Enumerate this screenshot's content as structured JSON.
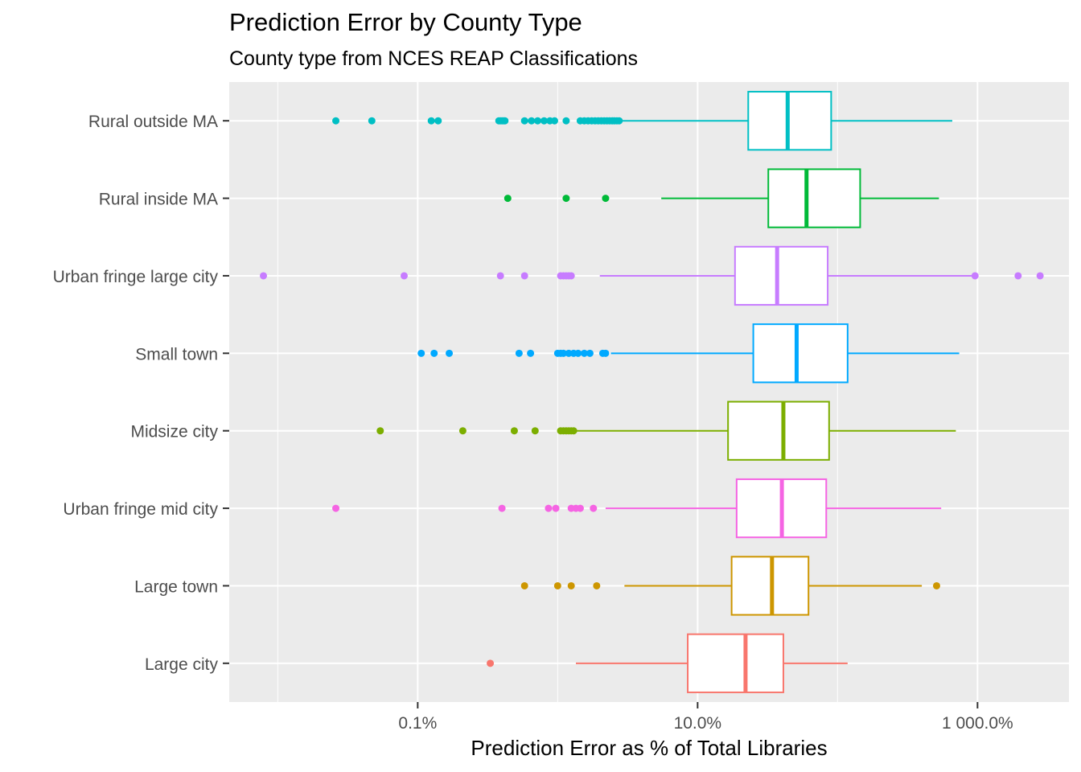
{
  "chart_data": {
    "type": "boxplot",
    "title": "Prediction Error by County Type",
    "subtitle": "County type from NCES REAP Classifications",
    "xlabel": "Prediction Error as % of Total Libraries",
    "ylabel": "",
    "x_scale": "log10",
    "xlim_percent": [
      0.0045,
      4500
    ],
    "x_ticks": [
      {
        "value": 0.1,
        "label": "0.1%"
      },
      {
        "value": 10,
        "label": "10.0%"
      },
      {
        "value": 1000,
        "label": "1 000.0%"
      }
    ],
    "grid": true,
    "legend": "none",
    "categories": [
      "Rural outside MA",
      "Rural inside MA",
      "Urban fringe large city",
      "Small town",
      "Midsize city",
      "Urban fringe mid city",
      "Large town",
      "Large city"
    ],
    "series": [
      {
        "category": "Rural outside MA",
        "color": "#00BFC4",
        "whisker_low": 2.8,
        "q1": 23,
        "median": 44,
        "q3": 90,
        "whisker_high": 660,
        "outliers": [
          0.026,
          0.047,
          0.125,
          0.14,
          0.38,
          0.39,
          0.4,
          0.41,
          0.42,
          0.58,
          0.65,
          0.72,
          0.8,
          0.88,
          0.95,
          1.15,
          1.45,
          1.55,
          1.65,
          1.75,
          1.85,
          1.95,
          2.05,
          2.15,
          2.25,
          2.35,
          2.45,
          2.55,
          2.65,
          2.75
        ]
      },
      {
        "category": "Rural inside MA",
        "color": "#00BA38",
        "whisker_low": 5.5,
        "q1": 32,
        "median": 60,
        "q3": 145,
        "whisker_high": 530,
        "outliers": [
          0.44,
          1.15,
          2.2
        ]
      },
      {
        "category": "Urban fringe large city",
        "color": "#C77CFF",
        "whisker_low": 2.0,
        "q1": 18.5,
        "median": 37,
        "q3": 85,
        "whisker_high": 960,
        "outliers": [
          0.0079,
          0.08,
          0.39,
          0.58,
          1.05,
          1.1,
          1.15,
          1.2,
          1.25,
          960,
          1950,
          2800
        ]
      },
      {
        "category": "Small town",
        "color": "#00A9FF",
        "whisker_low": 2.4,
        "q1": 25,
        "median": 51,
        "q3": 118,
        "whisker_high": 740,
        "outliers": [
          0.106,
          0.131,
          0.168,
          0.53,
          0.64,
          1.0,
          1.05,
          1.1,
          1.2,
          1.3,
          1.4,
          1.55,
          1.7,
          2.1,
          2.2
        ]
      },
      {
        "category": "Midsize city",
        "color": "#7CAE00",
        "whisker_low": 1.3,
        "q1": 16.5,
        "median": 41,
        "q3": 87,
        "whisker_high": 700,
        "outliers": [
          0.054,
          0.21,
          0.49,
          0.69,
          1.05,
          1.1,
          1.15,
          1.2,
          1.25,
          1.3
        ]
      },
      {
        "category": "Urban fringe mid city",
        "color": "#F564E3",
        "whisker_low": 2.2,
        "q1": 19,
        "median": 40,
        "q3": 83,
        "whisker_high": 550,
        "outliers": [
          0.026,
          0.4,
          0.86,
          0.97,
          1.25,
          1.35,
          1.45,
          1.8
        ]
      },
      {
        "category": "Large town",
        "color": "#CD9600",
        "whisker_low": 3.0,
        "q1": 17.5,
        "median": 34,
        "q3": 62,
        "whisker_high": 400,
        "outliers": [
          0.58,
          1.0,
          1.25,
          1.9,
          510
        ]
      },
      {
        "category": "Large city",
        "color": "#F8766D",
        "whisker_low": 1.35,
        "q1": 8.5,
        "median": 22,
        "q3": 41,
        "whisker_high": 118,
        "outliers": [
          0.33
        ]
      }
    ]
  }
}
